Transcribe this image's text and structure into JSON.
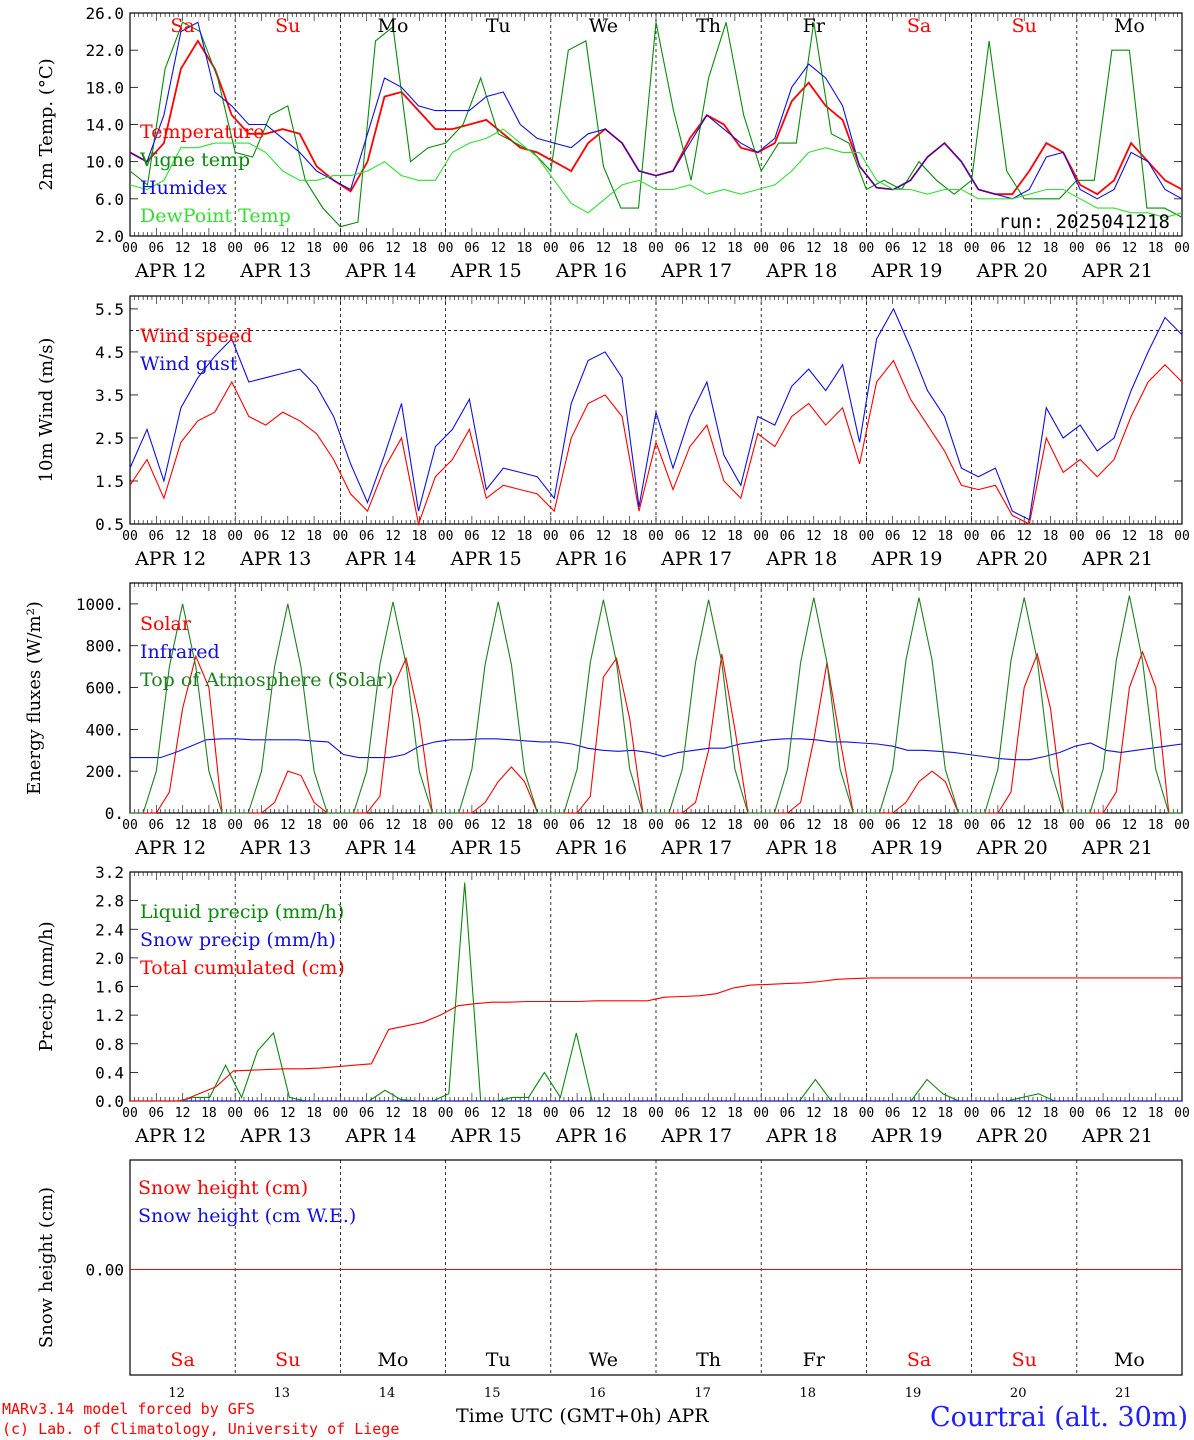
{
  "colors": {
    "red": "#ff0000",
    "green": "#0a8a0a",
    "blue": "#1010e0",
    "lightgreen": "#33dd33",
    "darkgreen": "#1f7f1f"
  },
  "days": [
    {
      "abbr": "Sa",
      "date": "APR 12",
      "num": "12",
      "weekend": true
    },
    {
      "abbr": "Su",
      "date": "APR 13",
      "num": "13",
      "weekend": true
    },
    {
      "abbr": "Mo",
      "date": "APR 14",
      "num": "14",
      "weekend": false
    },
    {
      "abbr": "Tu",
      "date": "APR 15",
      "num": "15",
      "weekend": false
    },
    {
      "abbr": "We",
      "date": "APR 16",
      "num": "16",
      "weekend": false
    },
    {
      "abbr": "Th",
      "date": "APR 17",
      "num": "17",
      "weekend": false
    },
    {
      "abbr": "Fr",
      "date": "APR 18",
      "num": "18",
      "weekend": false
    },
    {
      "abbr": "Sa",
      "date": "APR 19",
      "num": "19",
      "weekend": true
    },
    {
      "abbr": "Su",
      "date": "APR 20",
      "num": "20",
      "weekend": true
    },
    {
      "abbr": "Mo",
      "date": "APR 21",
      "num": "21",
      "weekend": false
    }
  ],
  "hour_ticks": [
    "00",
    "06",
    "12",
    "18"
  ],
  "hour_tick_end": "00",
  "footer": {
    "credit_1": "MARv3.14 model forced by GFS",
    "credit_2": "(c) Lab. of Climatology, University of Liege",
    "time_axis": "Time UTC (GMT+0h) APR",
    "station": "Courtrai (alt. 30m)"
  },
  "chart_data": [
    {
      "type": "line",
      "ylabel": "2m Temp. (°C)",
      "ylim": [
        2.0,
        26.0
      ],
      "yticks": [
        "2.0",
        "6.0",
        "10.0",
        "14.0",
        "18.0",
        "22.0",
        "26.0"
      ],
      "x_step_hours": 6,
      "annotation": "run: 2025041218",
      "series": [
        {
          "name": "Temperature",
          "color": "red",
          "values": [
            11,
            10,
            12,
            20,
            23,
            20,
            15,
            13,
            13,
            13.5,
            13,
            9.5,
            8,
            6.8,
            10,
            17,
            17.5,
            15.5,
            13.5,
            13.5,
            14,
            14.5,
            13,
            11.5,
            11,
            10,
            9,
            12,
            13.5,
            12,
            9,
            8.5,
            9,
            12.5,
            15,
            14,
            11.5,
            11,
            12,
            16.5,
            18.5,
            16,
            14.5,
            9.5,
            7.2,
            7,
            8,
            10.5,
            12,
            10,
            7,
            6.5,
            6.5,
            9,
            12,
            11,
            7.5,
            6.5,
            8,
            12,
            10,
            8,
            7
          ]
        },
        {
          "name": "Vigne temp",
          "color": "green",
          "values": [
            9,
            7.5,
            20,
            25,
            24,
            19,
            11,
            10.5,
            15,
            16,
            8,
            5,
            3,
            3.5,
            23,
            24.5,
            10,
            11.5,
            12,
            14,
            19,
            13,
            12,
            11,
            9,
            22,
            23,
            9.5,
            5,
            5,
            25,
            15.5,
            8,
            19,
            25,
            15,
            9,
            12,
            12,
            25,
            13,
            12,
            7,
            8,
            7,
            10,
            8,
            6.5,
            8,
            23,
            9,
            6,
            6,
            6,
            8,
            8,
            22,
            22,
            5,
            5,
            4
          ]
        },
        {
          "name": "Humidex",
          "color": "blue",
          "values": [
            11,
            10,
            15,
            24,
            25,
            17.5,
            16,
            14,
            14,
            12.5,
            11,
            9,
            8,
            7,
            13,
            19,
            18,
            16,
            15.5,
            15.5,
            15.5,
            17,
            17.5,
            14,
            12.5,
            12,
            11.5,
            13,
            13.5,
            12,
            9,
            8.5,
            9,
            12,
            15,
            13.5,
            12,
            11,
            12.5,
            18,
            20.5,
            19,
            16,
            9.5,
            7.2,
            7,
            8,
            10.5,
            12,
            10,
            7,
            6.5,
            6,
            7,
            10.5,
            11,
            7,
            6,
            7,
            11,
            10,
            7,
            6
          ]
        },
        {
          "name": "DewPoint Temp",
          "color": "lightgreen",
          "values": [
            7.5,
            7,
            8,
            11.5,
            11.5,
            12,
            12,
            12,
            11,
            9,
            8,
            8,
            8.5,
            8.5,
            9,
            10,
            8.5,
            8,
            8,
            11,
            12,
            12.5,
            13.5,
            12,
            10.5,
            8,
            5.5,
            4.5,
            6,
            7.5,
            8,
            7,
            7,
            7.5,
            6.5,
            7,
            6.5,
            7,
            7.5,
            9,
            11,
            11.5,
            11,
            11,
            8,
            7,
            7,
            6.5,
            7,
            7,
            6,
            6,
            6,
            6.5,
            7,
            7,
            6,
            5,
            5,
            4.5,
            4.5,
            4,
            4.5
          ]
        }
      ]
    },
    {
      "type": "line",
      "ylabel": "10m Wind (m/s)",
      "ylim": [
        0.5,
        5.8
      ],
      "yticks": [
        "0.5",
        "1.5",
        "2.5",
        "3.5",
        "4.5",
        "5.5"
      ],
      "x_step_hours": 6,
      "reference_line": 5.0,
      "series": [
        {
          "name": "Wind speed",
          "color": "red",
          "values": [
            1.4,
            2.0,
            1.1,
            2.4,
            2.9,
            3.1,
            3.8,
            3.0,
            2.8,
            3.1,
            2.9,
            2.6,
            2.0,
            1.2,
            0.8,
            1.8,
            2.5,
            0.5,
            1.6,
            2.0,
            2.7,
            1.1,
            1.4,
            1.3,
            1.2,
            0.8,
            2.5,
            3.3,
            3.5,
            3.0,
            0.8,
            2.4,
            1.3,
            2.3,
            2.8,
            1.5,
            1.1,
            2.6,
            2.3,
            3.0,
            3.3,
            2.8,
            3.2,
            1.9,
            3.8,
            4.3,
            3.4,
            2.8,
            2.2,
            1.4,
            1.3,
            1.4,
            0.7,
            0.5,
            2.5,
            1.7,
            2.0,
            1.6,
            2.0,
            3.0,
            3.8,
            4.2,
            3.8
          ]
        },
        {
          "name": "Wind gust",
          "color": "blue",
          "values": [
            1.8,
            2.7,
            1.5,
            3.2,
            3.9,
            4.4,
            4.8,
            3.8,
            3.9,
            4.0,
            4.1,
            3.7,
            3.0,
            1.9,
            1.0,
            2.1,
            3.3,
            0.8,
            2.3,
            2.7,
            3.4,
            1.3,
            1.8,
            1.7,
            1.6,
            1.1,
            3.3,
            4.3,
            4.5,
            3.9,
            0.9,
            3.1,
            1.8,
            3.0,
            3.8,
            2.1,
            1.4,
            3.0,
            2.8,
            3.7,
            4.1,
            3.6,
            4.2,
            2.4,
            4.8,
            5.5,
            4.6,
            3.6,
            3.0,
            1.8,
            1.6,
            1.8,
            0.8,
            0.6,
            3.2,
            2.5,
            2.8,
            2.2,
            2.5,
            3.6,
            4.5,
            5.3,
            4.9
          ]
        }
      ]
    },
    {
      "type": "line",
      "ylabel": "Energy fluxes (W/m²)",
      "ylim": [
        0,
        1100
      ],
      "yticks": [
        "0.",
        "200.",
        "400.",
        "600.",
        "800.",
        "1000."
      ],
      "x_step_hours": 3,
      "series": [
        {
          "name": "Solar",
          "color": "red",
          "values": [
            0,
            0,
            0,
            100,
            500,
            750,
            600,
            0,
            0,
            0,
            0,
            50,
            200,
            180,
            50,
            0,
            0,
            0,
            0,
            80,
            600,
            740,
            450,
            0,
            0,
            0,
            0,
            50,
            150,
            220,
            150,
            0,
            0,
            0,
            0,
            80,
            650,
            740,
            450,
            0,
            0,
            0,
            0,
            50,
            300,
            760,
            400,
            0,
            0,
            0,
            0,
            50,
            350,
            720,
            350,
            0,
            0,
            0,
            0,
            50,
            150,
            200,
            150,
            0,
            0,
            0,
            0,
            100,
            600,
            760,
            500,
            0,
            0,
            0,
            0,
            100,
            600,
            770,
            600,
            0,
            0
          ]
        },
        {
          "name": "Infrared",
          "color": "blue",
          "values": [
            265,
            265,
            265,
            290,
            320,
            350,
            355,
            355,
            350,
            350,
            350,
            350,
            345,
            340,
            280,
            265,
            265,
            265,
            280,
            320,
            340,
            350,
            350,
            355,
            355,
            350,
            345,
            340,
            340,
            330,
            310,
            300,
            295,
            300,
            290,
            270,
            290,
            300,
            310,
            310,
            330,
            340,
            350,
            355,
            355,
            350,
            340,
            340,
            335,
            330,
            320,
            300,
            300,
            295,
            290,
            280,
            270,
            260,
            255,
            255,
            270,
            290,
            320,
            335,
            300,
            290,
            300,
            310,
            320,
            330
          ]
        },
        {
          "name": "Top of Atmosphere (Solar)",
          "color": "darkgreen",
          "values": [
            0,
            0,
            200,
            700,
            1000,
            700,
            200,
            0,
            0,
            0,
            200,
            700,
            1000,
            700,
            200,
            0,
            0,
            0,
            200,
            710,
            1010,
            710,
            200,
            0,
            0,
            0,
            210,
            710,
            1010,
            710,
            200,
            0,
            0,
            0,
            210,
            720,
            1020,
            720,
            210,
            0,
            0,
            0,
            210,
            720,
            1020,
            720,
            210,
            0,
            0,
            0,
            210,
            720,
            1030,
            720,
            210,
            0,
            0,
            0,
            210,
            730,
            1030,
            730,
            210,
            0,
            0,
            0,
            210,
            730,
            1030,
            730,
            210,
            0,
            0,
            0,
            210,
            730,
            1040,
            730,
            210,
            0,
            0
          ]
        }
      ]
    },
    {
      "type": "line",
      "ylabel": "Precip (mm/h)",
      "ylim": [
        0,
        3.2
      ],
      "yticks": [
        "0.0",
        "0.4",
        "0.8",
        "1.2",
        "1.6",
        "2.0",
        "2.4",
        "2.8",
        "3.2"
      ],
      "x_step_hours": 6,
      "series": [
        {
          "name": "Liquid precip (mm/h)",
          "color": "green",
          "values": [
            0,
            0,
            0,
            0,
            0.05,
            0.05,
            0.5,
            0.05,
            0.7,
            0.95,
            0.05,
            0,
            0,
            0,
            0,
            0,
            0.15,
            0.02,
            0,
            0,
            0.1,
            3.05,
            0,
            0,
            0.05,
            0.05,
            0.4,
            0.05,
            0.95,
            0,
            0,
            0,
            0,
            0,
            0,
            0,
            0,
            0,
            0,
            0,
            0,
            0,
            0,
            0.3,
            0,
            0,
            0,
            0,
            0,
            0,
            0.3,
            0.1,
            0,
            0,
            0,
            0,
            0.05,
            0.1,
            0,
            0,
            0,
            0,
            0,
            0,
            0,
            0,
            0
          ]
        },
        {
          "name": "Snow precip (mm/h)",
          "color": "blue",
          "values": [
            0,
            0,
            0,
            0,
            0,
            0,
            0,
            0,
            0,
            0,
            0,
            0,
            0,
            0,
            0,
            0,
            0,
            0,
            0,
            0,
            0,
            0,
            0,
            0,
            0,
            0,
            0,
            0,
            0,
            0,
            0,
            0,
            0,
            0,
            0,
            0,
            0,
            0,
            0,
            0,
            0,
            0,
            0,
            0,
            0,
            0,
            0,
            0,
            0,
            0,
            0,
            0,
            0,
            0,
            0,
            0,
            0,
            0,
            0,
            0,
            0,
            0,
            0
          ]
        },
        {
          "name": "Total cumulated (cm)",
          "color": "red",
          "values": [
            0,
            0,
            0,
            0,
            0.1,
            0.2,
            0.42,
            0.43,
            0.44,
            0.45,
            0.45,
            0.46,
            0.48,
            0.5,
            0.52,
            1.0,
            1.05,
            1.1,
            1.2,
            1.33,
            1.36,
            1.38,
            1.38,
            1.39,
            1.39,
            1.39,
            1.39,
            1.4,
            1.4,
            1.4,
            1.4,
            1.45,
            1.46,
            1.47,
            1.5,
            1.58,
            1.62,
            1.63,
            1.64,
            1.65,
            1.67,
            1.7,
            1.71,
            1.72,
            1.72,
            1.72,
            1.72,
            1.72,
            1.72,
            1.72,
            1.72,
            1.72,
            1.72,
            1.72,
            1.72,
            1.72,
            1.72,
            1.72,
            1.72,
            1.72,
            1.72,
            1.72
          ]
        }
      ]
    },
    {
      "type": "line",
      "ylabel": "Snow height (cm)",
      "yticks": [
        "0.00"
      ],
      "x_step_hours": 6,
      "series": [
        {
          "name": "Snow height (cm)",
          "color": "red",
          "values": [
            0,
            0
          ]
        },
        {
          "name": "Snow height (cm W.E.)",
          "color": "blue",
          "values": []
        }
      ]
    }
  ]
}
